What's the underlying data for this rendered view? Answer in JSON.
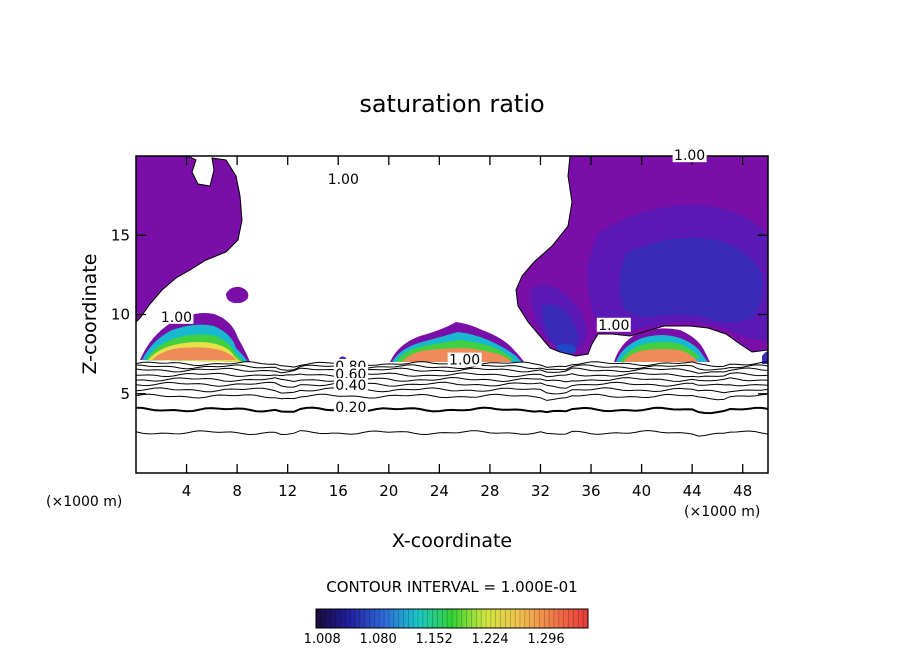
{
  "chart_data": {
    "type": "contour",
    "title": "saturation ratio",
    "xlabel": "X-coordinate",
    "ylabel": "Z-coordinate",
    "x_unit_label": "(×1000 m)",
    "y_unit_label": "(×1000 m)",
    "xlim": [
      0,
      50
    ],
    "ylim": [
      0,
      20
    ],
    "x_ticks": [
      4,
      8,
      12,
      16,
      20,
      24,
      28,
      32,
      36,
      40,
      44,
      48
    ],
    "y_ticks": [
      5,
      10,
      15
    ],
    "contour_interval_label": "CONTOUR INTERVAL = 1.000E-01",
    "colorbar": {
      "min": 1.0,
      "max": 1.35,
      "tick_values": [
        "1.008",
        "1.080",
        "1.152",
        "1.224",
        "1.296"
      ],
      "colors": [
        "#1a0a3a",
        "#2020a0",
        "#2f6ad8",
        "#19c8c8",
        "#34d234",
        "#d2e640",
        "#f0c050",
        "#f07848",
        "#e83838"
      ]
    },
    "fill_colors": {
      "saturated_1_00": "#7a0ea8",
      "level_1_02": "#5a18b4",
      "level_1_05": "#3a2ab8",
      "level_1_10": "#1e48c8",
      "level_1_15": "#18b8d0",
      "level_1_20": "#40d040",
      "level_1_25": "#e8e048",
      "level_1_30": "#f08a58",
      "level_1_35": "#f06868"
    },
    "contour_labels": [
      {
        "text": "1.00",
        "x": 16.4,
        "y": 18.3
      },
      {
        "text": "1.00",
        "x": 3.2,
        "y": 9.6
      },
      {
        "text": "1.00",
        "x": 26.0,
        "y": 6.9
      },
      {
        "text": "1.00",
        "x": 37.8,
        "y": 9.1
      },
      {
        "text": "1.00",
        "x": 43.8,
        "y": 19.8
      },
      {
        "text": "0.80",
        "x": 17.0,
        "y": 6.5
      },
      {
        "text": "0.60",
        "x": 17.0,
        "y": 6.0
      },
      {
        "text": "0.40",
        "x": 17.0,
        "y": 5.3
      },
      {
        "text": "0.20",
        "x": 17.0,
        "y": 3.9
      }
    ],
    "contour_lines_z": [
      6.9,
      6.7,
      6.5,
      6.2,
      5.9,
      5.6,
      5.25,
      4.85,
      4.0,
      2.55
    ]
  }
}
